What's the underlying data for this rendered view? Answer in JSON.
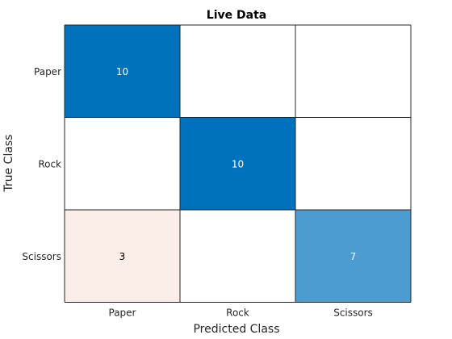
{
  "chart_data": {
    "type": "heatmap",
    "title": "Live Data",
    "xlabel": "Predicted Class",
    "ylabel": "True Class",
    "x_categories": [
      "Paper",
      "Rock",
      "Scissors"
    ],
    "y_categories": [
      "Paper",
      "Rock",
      "Scissors"
    ],
    "matrix": [
      [
        10,
        0,
        0
      ],
      [
        0,
        10,
        0
      ],
      [
        3,
        0,
        7
      ]
    ],
    "diagonal_color": "#0072BD",
    "off_diagonal_color": "#D95319",
    "max_value": 10,
    "show_zero_labels": false
  }
}
